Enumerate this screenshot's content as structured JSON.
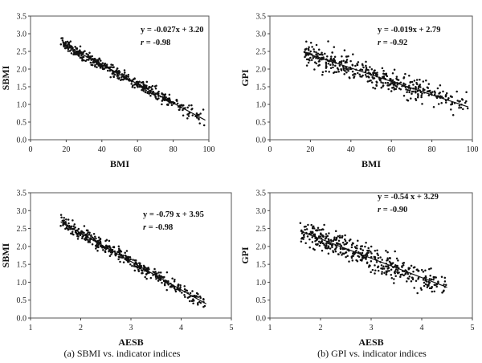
{
  "chart_data": [
    {
      "type": "scatter",
      "xlabel": "BMI",
      "ylabel": "SBMI",
      "xlim": [
        0,
        100
      ],
      "ylim": [
        0.0,
        3.5
      ],
      "xticks": [
        "0",
        "20",
        "40",
        "60",
        "80",
        "100"
      ],
      "yticks": [
        "0.0",
        "0.5",
        "1.0",
        "1.5",
        "2.0",
        "2.5",
        "3.0",
        "3.5"
      ],
      "equation": "y = -0.027x + 3.20",
      "r_label": "r",
      "r_value": " = -0.98",
      "fit": {
        "slope": -0.027,
        "intercept": 3.2,
        "x_start": 18,
        "x_end": 98
      },
      "points_summary": {
        "count": 420,
        "x_range": [
          17,
          98
        ],
        "spread": 0.08
      }
    },
    {
      "type": "scatter",
      "xlabel": "BMI",
      "ylabel": "GPI",
      "xlim": [
        0,
        100
      ],
      "ylim": [
        0.0,
        3.5
      ],
      "xticks": [
        "0",
        "20",
        "40",
        "60",
        "80",
        "100"
      ],
      "yticks": [
        "0.0",
        "0.5",
        "1.0",
        "1.5",
        "2.0",
        "2.5",
        "3.0",
        "3.5"
      ],
      "equation": "y = -0.019x + 2.79",
      "r_label": "r",
      "r_value": " = -0.92",
      "fit": {
        "slope": -0.019,
        "intercept": 2.79,
        "x_start": 18,
        "x_end": 98
      },
      "points_summary": {
        "count": 420,
        "x_range": [
          17,
          98
        ],
        "spread": 0.16
      }
    },
    {
      "type": "scatter",
      "xlabel": "AESB",
      "ylabel": "SBMI",
      "xlim": [
        1,
        5
      ],
      "ylim": [
        0.0,
        3.5
      ],
      "xticks": [
        "1",
        "2",
        "3",
        "4",
        "5"
      ],
      "yticks": [
        "0.0",
        "0.5",
        "1.0",
        "1.5",
        "2.0",
        "2.5",
        "3.0",
        "3.5"
      ],
      "equation": "y = -0.79 x + 3.95",
      "r_label": "r",
      "r_value": " = -0.98",
      "fit": {
        "slope": -0.79,
        "intercept": 3.95,
        "x_start": 1.6,
        "x_end": 4.5
      },
      "points_summary": {
        "count": 420,
        "x_range": [
          1.6,
          4.5
        ],
        "spread": 0.09
      }
    },
    {
      "type": "scatter",
      "xlabel": "AESB",
      "ylabel": "GPI",
      "xlim": [
        1,
        5
      ],
      "ylim": [
        0.0,
        3.5
      ],
      "xticks": [
        "1",
        "2",
        "3",
        "4",
        "5"
      ],
      "yticks": [
        "0.0",
        "0.5",
        "1.0",
        "1.5",
        "2.0",
        "2.5",
        "3.0",
        "3.5"
      ],
      "equation": "y = -0.54 x + 3.29",
      "r_label": "r",
      "r_value": " = -0.90",
      "fit": {
        "slope": -0.54,
        "intercept": 3.29,
        "x_start": 1.6,
        "x_end": 4.5
      },
      "points_summary": {
        "count": 420,
        "x_range": [
          1.6,
          4.5
        ],
        "spread": 0.17
      }
    }
  ],
  "captions": {
    "left": "(a)  SBMI  vs.  indicator  indices",
    "right": "(b)  GPI  vs.  indicator  indices"
  }
}
